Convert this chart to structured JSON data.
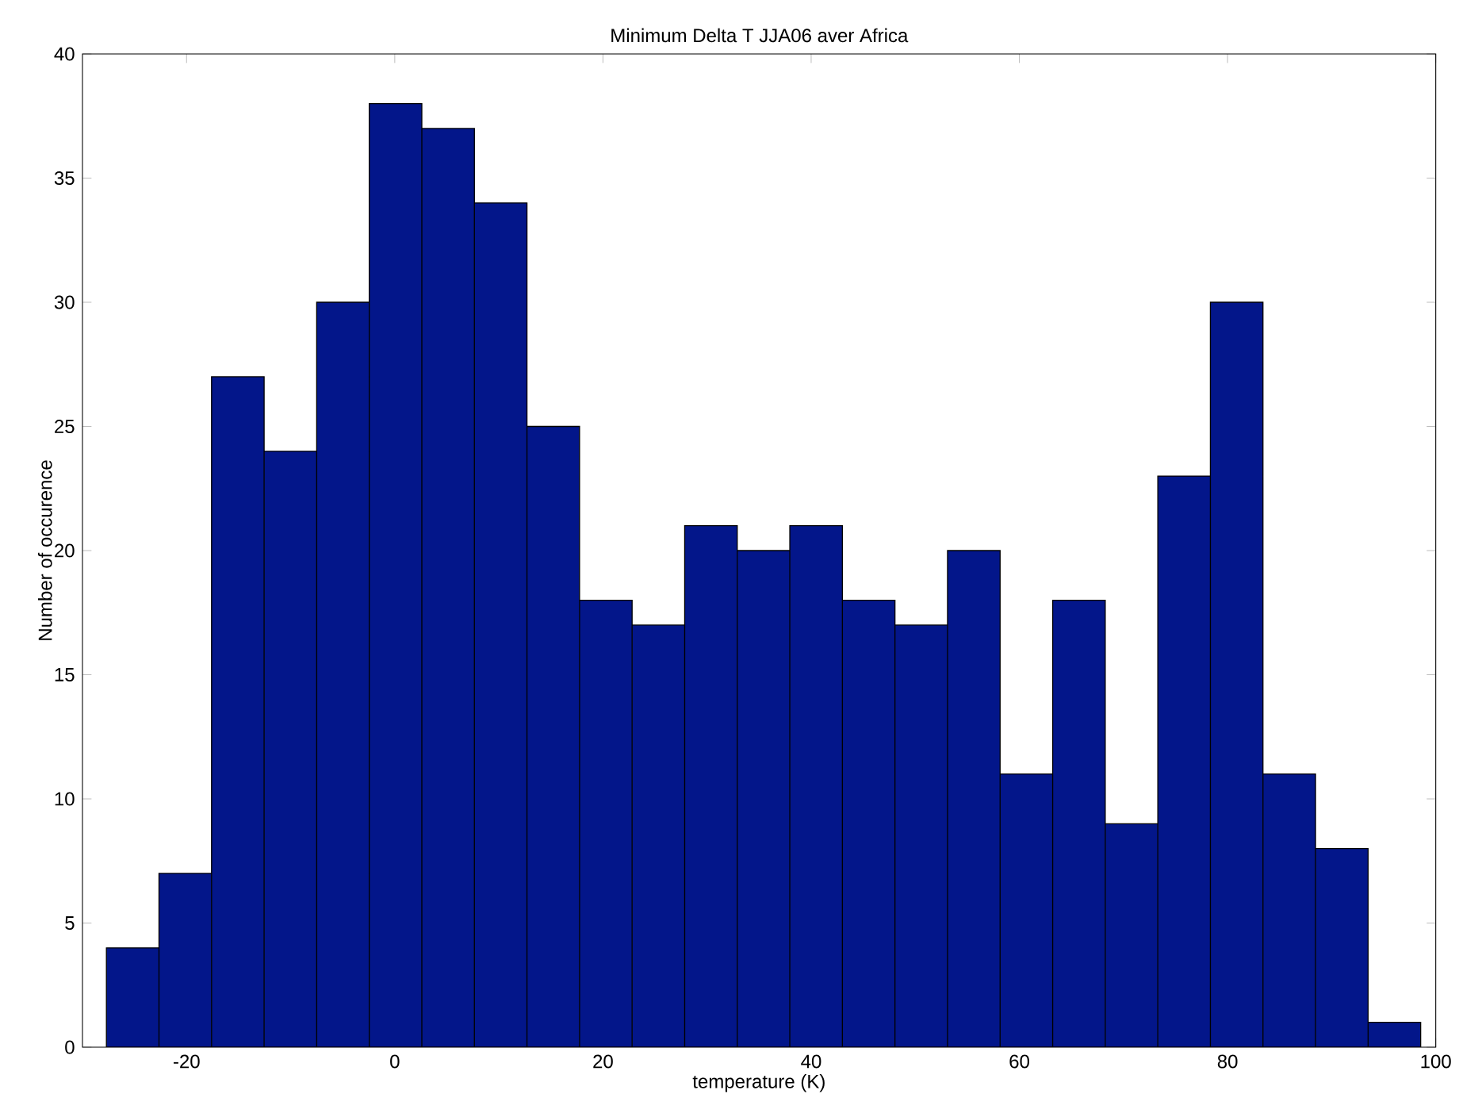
{
  "chart_data": {
    "type": "histogram",
    "title": "Minimum Delta T JJA06 aver Africa",
    "xlabel": "temperature (K)",
    "ylabel": "Number of occurence",
    "bins": [
      -27.7,
      -22.65,
      -17.6,
      -12.55,
      -7.5,
      -2.45,
      2.6,
      7.65,
      12.7,
      17.75,
      22.8,
      27.85,
      32.9,
      37.95,
      43.0,
      48.05,
      53.1,
      58.15,
      63.2,
      68.25,
      73.3,
      78.35,
      83.4,
      88.45,
      93.5,
      98.55
    ],
    "values": [
      4,
      7,
      27,
      24,
      30,
      38,
      37,
      34,
      25,
      18,
      17,
      21,
      20,
      21,
      18,
      17,
      20,
      11,
      18,
      9,
      23,
      30,
      11,
      8,
      1
    ],
    "color": "#03168a",
    "xlim": [
      -30,
      100
    ],
    "ylim": [
      0,
      40
    ],
    "xticks": [
      -20,
      0,
      20,
      40,
      60,
      80,
      100
    ],
    "yticks": [
      0,
      5,
      10,
      15,
      20,
      25,
      30,
      35,
      40
    ],
    "grid": false
  }
}
